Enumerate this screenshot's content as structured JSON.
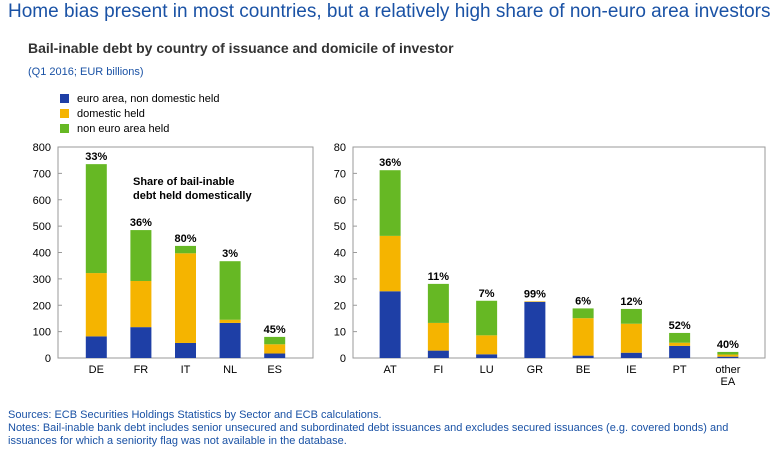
{
  "header": {
    "headline": "Home bias present in most countries, but a relatively high share of non-euro area investors",
    "subtitle": "Bail-inable debt by country of issuance and domicile of investor",
    "units": "(Q1 2016; EUR billions)"
  },
  "legend": [
    {
      "label": "euro area, non domestic held",
      "color": "#1e3fa6"
    },
    {
      "label": "domestic held",
      "color": "#f5b400"
    },
    {
      "label": "non euro area held",
      "color": "#66b824"
    }
  ],
  "footer": {
    "sources": "Sources: ECB Securities Holdings Statistics by Sector and ECB calculations.",
    "notes_line1": "Notes: Bail-inable bank debt includes senior unsecured and subordinated debt issuances and excludes secured issuances (e.g. covered bonds) and",
    "notes_line2": "issuances for which a seniority flag was not available in the database."
  },
  "chart_data": [
    {
      "type": "bar",
      "stacked": true,
      "categories": [
        "DE",
        "FR",
        "IT",
        "NL",
        "ES"
      ],
      "series": [
        {
          "name": "euro area, non domestic held",
          "values": [
            82,
            117,
            57,
            133,
            17
          ]
        },
        {
          "name": "domestic held",
          "values": [
            240,
            175,
            340,
            12,
            35
          ]
        },
        {
          "name": "non euro area held",
          "values": [
            413,
            193,
            28,
            222,
            28
          ]
        }
      ],
      "bar_labels": [
        "33%",
        "36%",
        "80%",
        "3%",
        "45%"
      ],
      "annotation": "Share of bail-inable debt held domestically",
      "ylim": [
        0,
        800
      ],
      "yticks": [
        0,
        100,
        200,
        300,
        400,
        500,
        600,
        700,
        800
      ],
      "grid": false
    },
    {
      "type": "bar",
      "stacked": true,
      "categories": [
        "AT",
        "FI",
        "LU",
        "GR",
        "BE",
        "IE",
        "PT",
        "other EA"
      ],
      "series": [
        {
          "name": "euro area, non domestic held",
          "values": [
            25.3,
            2.8,
            1.4,
            21.3,
            0.9,
            2.0,
            4.6,
            0.5
          ]
        },
        {
          "name": "domestic held",
          "values": [
            21.0,
            10.5,
            7.2,
            0.2,
            14.2,
            11.0,
            1.2,
            0.8
          ]
        },
        {
          "name": "non euro area held",
          "values": [
            24.9,
            14.8,
            13.1,
            0.0,
            3.7,
            5.6,
            3.7,
            1.0
          ]
        }
      ],
      "bar_labels": [
        "36%",
        "11%",
        "7%",
        "99%",
        "6%",
        "12%",
        "52%",
        "40%"
      ],
      "ylim": [
        0,
        80
      ],
      "yticks": [
        0,
        10,
        20,
        30,
        40,
        50,
        60,
        70,
        80
      ],
      "grid": false
    }
  ]
}
